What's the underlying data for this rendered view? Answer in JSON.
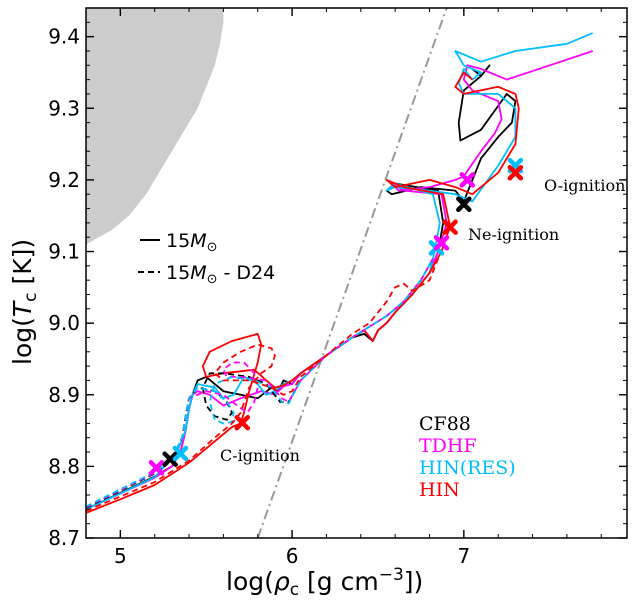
{
  "chart_data": {
    "type": "line",
    "xlabel": "log(ρc [g cm⁻³])",
    "xlabel_parts": {
      "pre": "log(",
      "sym": "ρ",
      "sub": "c",
      "mid": " [g cm",
      "sup": "−3",
      "post": "])"
    },
    "ylabel": "log(Tc [K])",
    "ylabel_parts": {
      "pre": "log(",
      "sym": "T",
      "sub": "c",
      "post": " [K])"
    },
    "xlim": [
      4.8,
      7.95
    ],
    "ylim": [
      8.7,
      9.44
    ],
    "xticks": [
      5,
      6,
      7
    ],
    "xtick_labels": [
      "5",
      "6",
      "7"
    ],
    "yticks": [
      8.7,
      8.8,
      8.9,
      9.0,
      9.1,
      9.2,
      9.3,
      9.4
    ],
    "ytick_labels": [
      "8.7",
      "8.8",
      "8.9",
      "9.0",
      "9.1",
      "9.2",
      "9.3",
      "9.4"
    ],
    "colors": {
      "CF88": "#000000",
      "TDHF": "#ff00ff",
      "HIN(RES)": "#00bfff",
      "HIN": "#ff0000",
      "boundary": "#999999",
      "shade": "#cccccc"
    },
    "style_legend": [
      {
        "label": "15M⊙",
        "pre": "15",
        "sym": "M",
        "sub": "⊙",
        "post": "",
        "dash": "solid"
      },
      {
        "label": "15M⊙ - D24",
        "pre": "15",
        "sym": "M",
        "sub": "⊙",
        "post": " - D24",
        "dash": "dashed"
      }
    ],
    "legend": [
      "CF88",
      "TDHF",
      "HIN(RES)",
      "HIN"
    ],
    "annotations": {
      "c_ignition": "C-ignition",
      "ne_ignition": "Ne-ignition",
      "o_ignition": "O-ignition"
    },
    "shaded_region": {
      "x": [
        4.8,
        5.6,
        5.6,
        5.58,
        5.55,
        5.5,
        5.45,
        5.35,
        5.25,
        5.15,
        5.05,
        4.95,
        4.8
      ],
      "y": [
        9.44,
        9.44,
        9.42,
        9.39,
        9.36,
        9.33,
        9.3,
        9.26,
        9.22,
        9.18,
        9.15,
        9.13,
        9.11
      ]
    },
    "boundary_line": {
      "x": [
        5.8,
        6.9
      ],
      "y": [
        8.7,
        9.44
      ]
    },
    "series": [
      {
        "name": "CF88",
        "dash": "solid",
        "x": [
          4.8,
          5.0,
          5.2,
          5.3,
          5.35,
          5.38,
          5.4,
          5.42,
          5.45,
          5.5,
          5.6,
          5.7,
          5.8,
          5.88,
          5.92,
          5.95,
          6.0,
          6.05,
          6.2,
          6.35,
          6.42,
          6.47,
          6.5,
          6.55,
          6.6,
          6.7,
          6.8,
          6.85,
          6.88,
          6.85,
          6.6,
          6.55,
          6.58,
          6.75,
          6.95,
          7.0,
          7.05,
          7.1,
          7.2,
          7.28,
          7.3,
          7.25,
          7.1,
          6.98,
          6.97,
          7.0,
          7.1,
          7.15,
          7.1,
          7.05
        ],
        "y": [
          8.74,
          8.763,
          8.786,
          8.8,
          8.82,
          8.85,
          8.88,
          8.9,
          8.92,
          8.925,
          8.905,
          8.9,
          8.895,
          8.91,
          8.905,
          8.92,
          8.915,
          8.93,
          8.955,
          8.98,
          8.985,
          8.975,
          8.99,
          9.0,
          9.015,
          9.04,
          9.07,
          9.1,
          9.14,
          9.185,
          9.195,
          9.185,
          9.18,
          9.19,
          9.185,
          9.17,
          9.2,
          9.23,
          9.26,
          9.28,
          9.31,
          9.32,
          9.27,
          9.255,
          9.28,
          9.325,
          9.345,
          9.36,
          9.345,
          9.355
        ]
      },
      {
        "name": "TDHF",
        "dash": "solid",
        "x": [
          4.8,
          5.0,
          5.2,
          5.3,
          5.35,
          5.38,
          5.4,
          5.42,
          5.45,
          5.52,
          5.6,
          5.7,
          5.82,
          5.9,
          5.95,
          6.0,
          6.05,
          6.2,
          6.35,
          6.42,
          6.47,
          6.5,
          6.55,
          6.6,
          6.7,
          6.8,
          6.85,
          6.9,
          6.87,
          6.65,
          6.58,
          6.62,
          6.8,
          6.95,
          7.0,
          7.1,
          7.18,
          7.22,
          7.2,
          7.05,
          7.0,
          7.02,
          7.1,
          7.25,
          7.5,
          7.75
        ],
        "y": [
          8.74,
          8.762,
          8.784,
          8.8,
          8.82,
          8.85,
          8.88,
          8.9,
          8.905,
          8.9,
          8.885,
          8.895,
          8.905,
          8.9,
          8.912,
          8.915,
          8.93,
          8.955,
          8.98,
          8.99,
          8.975,
          8.99,
          9.0,
          9.015,
          9.04,
          9.07,
          9.1,
          9.14,
          9.18,
          9.185,
          9.195,
          9.185,
          9.19,
          9.2,
          9.205,
          9.24,
          9.265,
          9.285,
          9.31,
          9.325,
          9.34,
          9.36,
          9.355,
          9.34,
          9.36,
          9.38
        ]
      },
      {
        "name": "HIN(RES)",
        "dash": "solid",
        "x": [
          4.8,
          5.0,
          5.2,
          5.33,
          5.38,
          5.4,
          5.42,
          5.45,
          5.55,
          5.6,
          5.66,
          5.72,
          5.78,
          5.85,
          5.9,
          5.95,
          6.0,
          6.05,
          6.2,
          6.35,
          6.42,
          6.47,
          6.5,
          6.55,
          6.6,
          6.7,
          6.8,
          6.83,
          6.86,
          6.82,
          6.6,
          6.55,
          6.6,
          6.8,
          6.95,
          7.05,
          7.2,
          7.3,
          7.3,
          7.2,
          7.0,
          6.97,
          7.0,
          7.05,
          7.1,
          7.0,
          6.95,
          7.1,
          7.3,
          7.6,
          7.75
        ],
        "y": [
          8.74,
          8.762,
          8.785,
          8.82,
          8.85,
          8.88,
          8.9,
          8.915,
          8.91,
          8.895,
          8.9,
          8.925,
          8.92,
          8.9,
          8.905,
          8.915,
          8.92,
          8.93,
          8.955,
          8.98,
          8.99,
          8.975,
          8.99,
          9.0,
          9.015,
          9.04,
          9.07,
          9.1,
          9.14,
          9.18,
          9.195,
          9.185,
          9.19,
          9.185,
          9.18,
          9.17,
          9.22,
          9.26,
          9.3,
          9.32,
          9.32,
          9.335,
          9.355,
          9.34,
          9.35,
          9.36,
          9.38,
          9.365,
          9.38,
          9.39,
          9.405
        ]
      },
      {
        "name": "HIN",
        "dash": "solid",
        "x": [
          4.8,
          5.0,
          5.2,
          5.4,
          5.55,
          5.65,
          5.7,
          5.72,
          5.75,
          5.8,
          5.82,
          5.8,
          5.65,
          5.52,
          5.48,
          5.5,
          5.6,
          5.78,
          5.85,
          5.9,
          5.95,
          6.0,
          6.05,
          6.2,
          6.35,
          6.42,
          6.47,
          6.5,
          6.55,
          6.6,
          6.7,
          6.8,
          6.87,
          6.92,
          6.88,
          6.65,
          6.55,
          6.6,
          6.8,
          6.95,
          7.05,
          7.2,
          7.3,
          7.32,
          7.3,
          7.2,
          7.0,
          6.95,
          7.0,
          7.05
        ],
        "y": [
          8.735,
          8.754,
          8.774,
          8.805,
          8.835,
          8.855,
          8.86,
          8.875,
          8.905,
          8.945,
          8.97,
          8.985,
          8.975,
          8.96,
          8.94,
          8.925,
          8.93,
          8.935,
          8.92,
          8.91,
          8.913,
          8.92,
          8.93,
          8.955,
          8.98,
          8.99,
          8.975,
          8.99,
          9.0,
          9.015,
          9.04,
          9.07,
          9.1,
          9.135,
          9.18,
          9.19,
          9.2,
          9.19,
          9.2,
          9.19,
          9.18,
          9.21,
          9.25,
          9.3,
          9.32,
          9.33,
          9.32,
          9.33,
          9.35,
          9.34
        ]
      },
      {
        "name": "CF88 D24",
        "dash": "dashed",
        "x": [
          4.8,
          5.0,
          5.2,
          5.3,
          5.36,
          5.38,
          5.4,
          5.45,
          5.55,
          5.62,
          5.65,
          5.62,
          5.55,
          5.5,
          5.48,
          5.52,
          5.6,
          5.75,
          5.85,
          5.93,
          5.98,
          6.05,
          6.2,
          6.35,
          6.45,
          6.55,
          6.65,
          6.75,
          6.82
        ],
        "y": [
          8.742,
          8.766,
          8.79,
          8.81,
          8.84,
          8.87,
          8.895,
          8.91,
          8.905,
          8.89,
          8.875,
          8.865,
          8.87,
          8.885,
          8.91,
          8.93,
          8.93,
          8.925,
          8.915,
          8.89,
          8.89,
          8.92,
          8.955,
          8.98,
          8.995,
          9.01,
          9.03,
          9.06,
          9.09
        ]
      },
      {
        "name": "TDHF D24",
        "dash": "dashed",
        "x": [
          4.8,
          5.0,
          5.2,
          5.3,
          5.36,
          5.38,
          5.4,
          5.5,
          5.6,
          5.68,
          5.74,
          5.78,
          5.8,
          5.78,
          5.72,
          5.65,
          5.6,
          5.62,
          5.7,
          5.85,
          5.94,
          5.98,
          6.05,
          6.2,
          6.35,
          6.45,
          6.55,
          6.65,
          6.75,
          6.82
        ],
        "y": [
          8.743,
          8.767,
          8.791,
          8.81,
          8.84,
          8.87,
          8.895,
          8.905,
          8.9,
          8.885,
          8.875,
          8.89,
          8.91,
          8.93,
          8.945,
          8.945,
          8.935,
          8.925,
          8.925,
          8.92,
          8.895,
          8.89,
          8.92,
          8.955,
          8.98,
          8.995,
          9.01,
          9.03,
          9.06,
          9.09
        ]
      },
      {
        "name": "HIN(RES) D24",
        "dash": "dashed",
        "x": [
          4.8,
          5.0,
          5.2,
          5.3,
          5.36,
          5.38,
          5.4,
          5.45,
          5.55,
          5.62,
          5.66,
          5.65,
          5.6,
          5.55,
          5.52,
          5.55,
          5.65,
          5.78,
          5.88,
          5.94,
          5.98,
          6.05,
          6.2,
          6.35,
          6.45,
          6.55,
          6.65,
          6.75,
          6.82
        ],
        "y": [
          8.744,
          8.768,
          8.792,
          8.81,
          8.84,
          8.87,
          8.895,
          8.91,
          8.905,
          8.89,
          8.875,
          8.862,
          8.86,
          8.865,
          8.89,
          8.915,
          8.925,
          8.92,
          8.91,
          8.89,
          8.888,
          8.92,
          8.955,
          8.98,
          8.995,
          9.01,
          9.03,
          9.06,
          9.09
        ]
      },
      {
        "name": "HIN D24",
        "dash": "dashed",
        "x": [
          4.8,
          5.0,
          5.2,
          5.4,
          5.55,
          5.65,
          5.7,
          5.75,
          5.82,
          5.88,
          5.9,
          5.88,
          5.8,
          5.7,
          5.6,
          5.55,
          5.6,
          5.75,
          5.88,
          5.95,
          6.0,
          6.05,
          6.2,
          6.35,
          6.45,
          6.55,
          6.6,
          6.65,
          6.7,
          6.8,
          6.85
        ],
        "y": [
          8.738,
          8.758,
          8.778,
          8.808,
          8.84,
          8.86,
          8.875,
          8.91,
          8.93,
          8.94,
          8.955,
          8.965,
          8.97,
          8.96,
          8.945,
          8.93,
          8.92,
          8.92,
          8.91,
          8.9,
          8.905,
          8.925,
          8.955,
          8.985,
          9.0,
          9.03,
          9.05,
          9.055,
          9.045,
          9.06,
          9.09
        ]
      }
    ],
    "markers": [
      {
        "series": "TDHF",
        "x": 5.21,
        "y": 8.798
      },
      {
        "series": "CF88",
        "x": 5.29,
        "y": 8.81
      },
      {
        "series": "HIN(RES)",
        "x": 5.35,
        "y": 8.818
      },
      {
        "series": "HIN",
        "x": 5.71,
        "y": 8.861
      },
      {
        "series": "HIN(RES)",
        "x": 6.84,
        "y": 9.105
      },
      {
        "series": "TDHF",
        "x": 6.87,
        "y": 9.112
      },
      {
        "series": "HIN",
        "x": 6.92,
        "y": 9.134
      },
      {
        "series": "CF88",
        "x": 7.0,
        "y": 9.166
      },
      {
        "series": "TDHF",
        "x": 7.02,
        "y": 9.2
      },
      {
        "series": "HIN(RES)",
        "x": 7.3,
        "y": 9.22
      },
      {
        "series": "HIN",
        "x": 7.3,
        "y": 9.21
      }
    ]
  }
}
